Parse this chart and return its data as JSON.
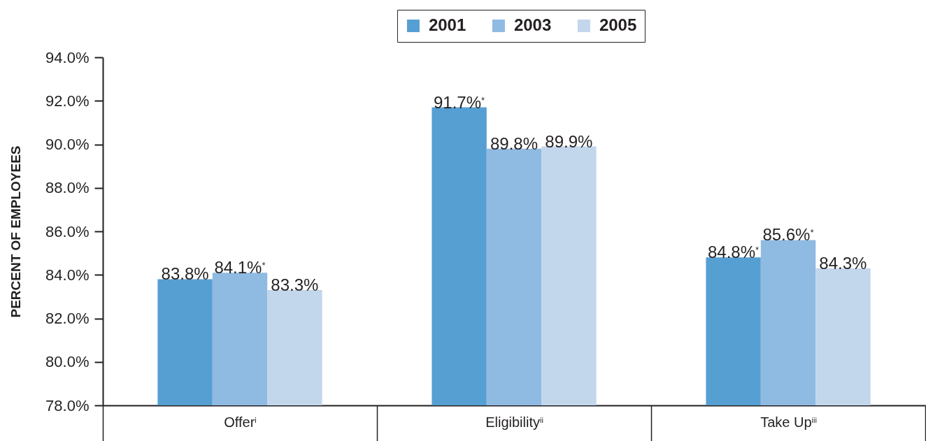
{
  "chart_data": {
    "type": "bar",
    "ylabel": "PERCENT OF EMPLOYEES",
    "legend": "top",
    "categories": [
      "Offer$^{i}$",
      "Eligibility$^{ii}$",
      "Take Up$^{iii}$"
    ],
    "series": [
      {
        "name": "2001",
        "color": "#569fd3",
        "values": [
          83.8,
          91.7,
          84.8
        ],
        "value_labels": [
          "83.8%",
          "91.7%$^{*}$",
          "84.8%$^{*}$"
        ]
      },
      {
        "name": "2003",
        "color": "#8fbae2",
        "values": [
          84.1,
          89.8,
          85.6
        ],
        "value_labels": [
          "84.1%$^{*}$",
          "89.8%",
          "85.6%$^{*}$"
        ]
      },
      {
        "name": "2005",
        "color": "#c2d6ec",
        "values": [
          83.3,
          89.9,
          84.3
        ],
        "value_labels": [
          "83.3%",
          "89.9%",
          "84.3%"
        ]
      }
    ],
    "ylim": [
      78,
      94
    ],
    "yticks": [
      {
        "value": 78,
        "label": "78.0%"
      },
      {
        "value": 80,
        "label": "80.0%"
      },
      {
        "value": 82,
        "label": "82.0%"
      },
      {
        "value": 84,
        "label": "84.0%"
      },
      {
        "value": 86,
        "label": "86.0%"
      },
      {
        "value": 88,
        "label": "88.0%"
      },
      {
        "value": 90,
        "label": "90.0%"
      },
      {
        "value": 92,
        "label": "92.0%"
      },
      {
        "value": 94,
        "label": "94.0%"
      }
    ]
  }
}
